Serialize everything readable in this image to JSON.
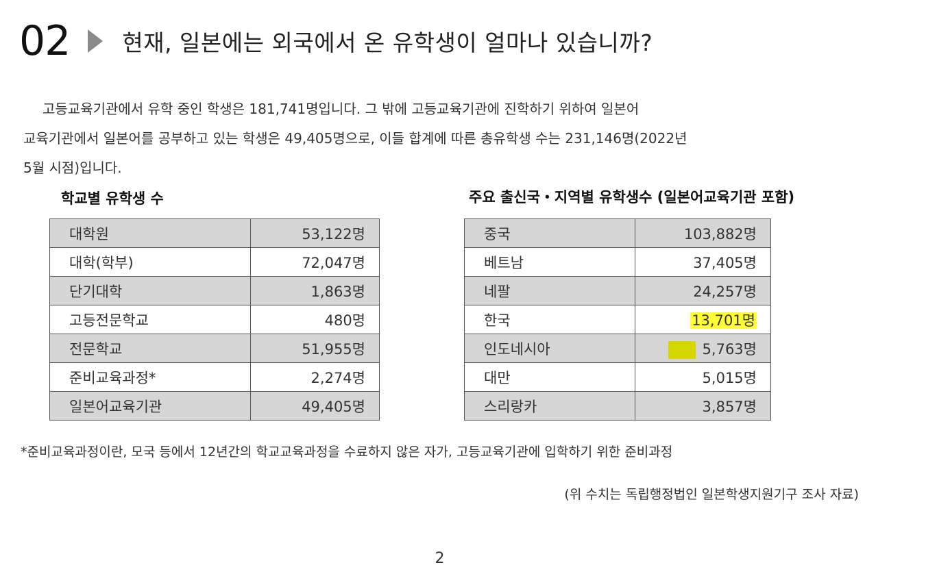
{
  "header": {
    "number": "02",
    "title": "현재, 일본에는 외국에서 온 유학생이 얼마나 있습니까?"
  },
  "paragraph": {
    "line1": "고등교육기관에서 유학 중인 학생은 181,741명입니다. 그 밖에 고등교육기관에 진학하기 위하여 일본어",
    "line2": "교육기관에서 일본어를 공부하고 있는 학생은 49,405명으로, 이들 합계에 따른 총유학생 수는 231,146명(2022년",
    "line3": "5월 시점)입니다."
  },
  "school_table": {
    "heading": "학교별 유학생 수",
    "rows": [
      {
        "label": "대학원",
        "value": "53,122명"
      },
      {
        "label": "대학(학부)",
        "value": "72,047명"
      },
      {
        "label": "단기대학",
        "value": "1,863명"
      },
      {
        "label": "고등전문학교",
        "value": "480명"
      },
      {
        "label": "전문학교",
        "value": "51,955명"
      },
      {
        "label": "준비교육과정*",
        "value": "2,274명"
      },
      {
        "label": "일본어교육기관",
        "value": "49,405명"
      }
    ]
  },
  "country_table": {
    "heading": "주요 출신국・지역별 유학생수 (일본어교육기관 포함)",
    "rows": [
      {
        "label": "중국",
        "value": "103,882명"
      },
      {
        "label": "베트남",
        "value": "37,405명"
      },
      {
        "label": "네팔",
        "value": "24,257명"
      },
      {
        "label": "한국",
        "value": "13,701명"
      },
      {
        "label": "인도네시아",
        "value": "5,763명"
      },
      {
        "label": "대만",
        "value": "5,015명"
      },
      {
        "label": "스리랑카",
        "value": "3,857명"
      }
    ],
    "highlight_color": "#ffff33"
  },
  "footnote": "*준비교육과정이란, 모국 등에서 12년간의 학교교육과정을 수료하지 않은 자가, 고등교육기관에 입학하기 위한 준비과정",
  "source": "(위 수치는 독립행정법인 일본학생지원기구 조사 자료)",
  "page_number": "2"
}
